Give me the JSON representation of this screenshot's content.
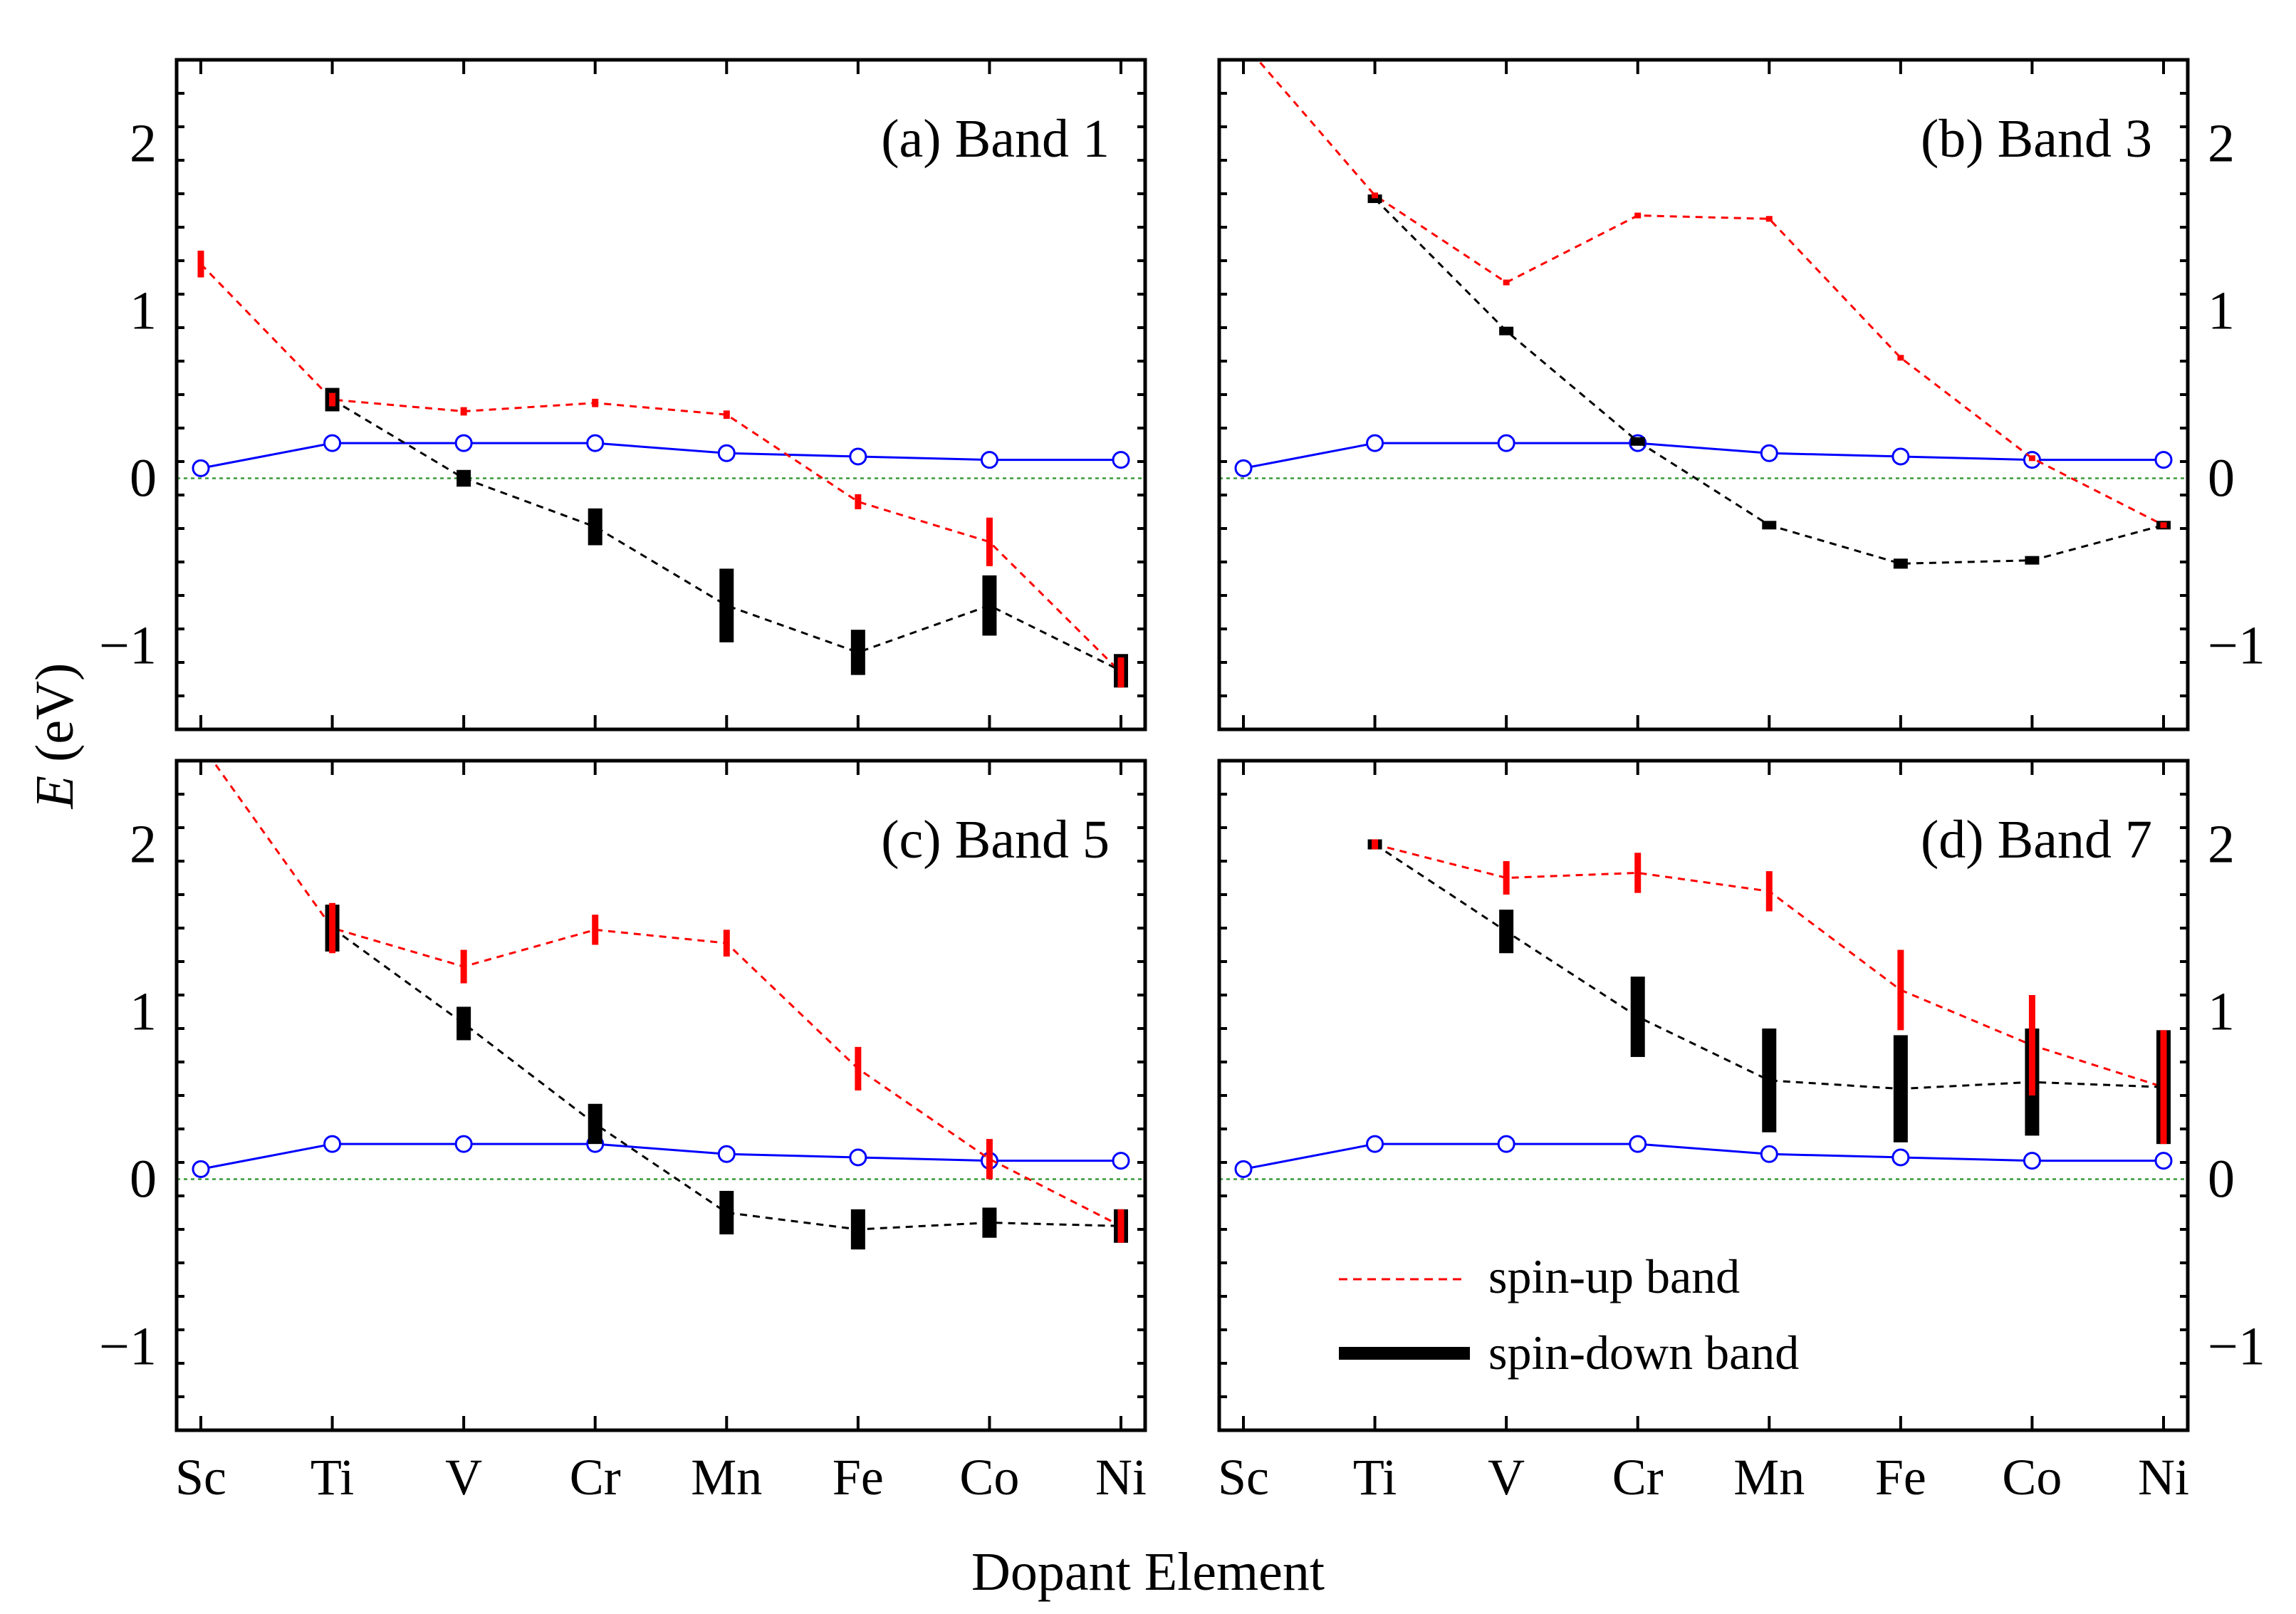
{
  "figure": {
    "xlabel": "Dopant Element",
    "ylabel_italic": "E",
    "ylabel_unit": " (eV)",
    "xticks": [
      "Sc",
      "Ti",
      "V",
      "Cr",
      "Mn",
      "Fe",
      "Co",
      "Ni"
    ],
    "yticks": [
      {
        "value": -1,
        "label": "−1"
      },
      {
        "value": 0,
        "label": "0"
      },
      {
        "value": 1,
        "label": "1"
      },
      {
        "value": 2,
        "label": "2"
      }
    ],
    "legend": {
      "position": "lower-right of panel (d)",
      "spin_up": "spin-up band",
      "spin_down": "spin-down band"
    }
  },
  "colors": {
    "spin_up": "#ff0000",
    "spin_down": "#000000",
    "reference": "#0000ff",
    "zero_line": "#3a9a3a",
    "frame": "#000000"
  },
  "chart_data": [
    {
      "type": "line",
      "title": "(a) Band 1",
      "categories": [
        "Sc",
        "Ti",
        "V",
        "Cr",
        "Mn",
        "Fe",
        "Co",
        "Ni"
      ],
      "ylim": [
        -1.5,
        2.5
      ],
      "series": [
        {
          "name": "spin-up band",
          "values": [
            1.28,
            0.47,
            0.4,
            0.45,
            0.38,
            -0.14,
            -0.38,
            -1.16
          ],
          "widths": [
            0.16,
            0.08,
            0.05,
            0.05,
            0.05,
            0.09,
            0.29,
            0.18
          ]
        },
        {
          "name": "spin-down band",
          "values": [
            null,
            0.47,
            0.0,
            -0.29,
            -0.76,
            -1.04,
            -0.76,
            -1.15
          ],
          "widths": [
            null,
            0.14,
            0.1,
            0.22,
            0.44,
            0.27,
            0.36,
            0.2
          ]
        },
        {
          "values": [
            0.06,
            0.21,
            0.21,
            0.21,
            0.15,
            0.13,
            0.11,
            0.11
          ]
        }
      ]
    },
    {
      "type": "line",
      "title": "(b) Band 3",
      "categories": [
        "Sc",
        "Ti",
        "V",
        "Cr",
        "Mn",
        "Fe",
        "Co",
        "Ni"
      ],
      "ylim": [
        -1.5,
        2.5
      ],
      "series": [
        {
          "name": "spin-up band",
          "values": [
            2.6,
            1.69,
            1.17,
            1.57,
            1.55,
            0.72,
            0.12,
            -0.28
          ],
          "widths": [
            0,
            0.02,
            0.02,
            0.02,
            0.02,
            0.02,
            0.02,
            0.02
          ]
        },
        {
          "name": "spin-down band",
          "values": [
            null,
            1.67,
            0.88,
            0.22,
            -0.28,
            -0.51,
            -0.49,
            -0.28
          ],
          "widths": [
            null,
            0.03,
            0.04,
            0.03,
            0.05,
            0.06,
            0.05,
            0.04
          ]
        },
        {
          "values": [
            0.06,
            0.21,
            0.21,
            0.21,
            0.15,
            0.13,
            0.11,
            0.11
          ]
        }
      ]
    },
    {
      "type": "line",
      "title": "(c) Band 5",
      "categories": [
        "Sc",
        "Ti",
        "V",
        "Cr",
        "Mn",
        "Fe",
        "Co",
        "Ni"
      ],
      "ylim": [
        -1.5,
        2.5
      ],
      "series": [
        {
          "name": "spin-up band",
          "values": [
            2.6,
            1.5,
            1.27,
            1.49,
            1.41,
            0.66,
            0.12,
            -0.28
          ],
          "widths": [
            0,
            0.3,
            0.2,
            0.18,
            0.16,
            0.26,
            0.24,
            0.2
          ]
        },
        {
          "name": "spin-down band",
          "values": [
            null,
            1.5,
            0.93,
            0.33,
            -0.2,
            -0.3,
            -0.26,
            -0.28
          ],
          "widths": [
            null,
            0.28,
            0.2,
            0.24,
            0.26,
            0.24,
            0.18,
            0.2
          ]
        },
        {
          "values": [
            0.06,
            0.21,
            0.21,
            0.21,
            0.15,
            0.13,
            0.11,
            0.11
          ]
        }
      ]
    },
    {
      "type": "line",
      "title": "(d) Band 7",
      "categories": [
        "Sc",
        "Ti",
        "V",
        "Cr",
        "Mn",
        "Fe",
        "Co",
        "Ni"
      ],
      "ylim": [
        -1.5,
        2.5
      ],
      "series": [
        {
          "name": "spin-up band",
          "values": [
            null,
            2.0,
            1.8,
            1.83,
            1.72,
            1.13,
            0.8,
            0.55
          ],
          "widths": [
            null,
            0.06,
            0.2,
            0.24,
            0.24,
            0.48,
            0.6,
            0.68
          ]
        },
        {
          "name": "spin-down band",
          "values": [
            null,
            2.0,
            1.48,
            0.97,
            0.59,
            0.54,
            0.58,
            0.55
          ],
          "widths": [
            null,
            0.06,
            0.26,
            0.48,
            0.62,
            0.64,
            0.64,
            0.68
          ]
        },
        {
          "values": [
            0.06,
            0.21,
            0.21,
            0.21,
            0.15,
            0.13,
            0.11,
            0.11
          ]
        }
      ]
    }
  ]
}
